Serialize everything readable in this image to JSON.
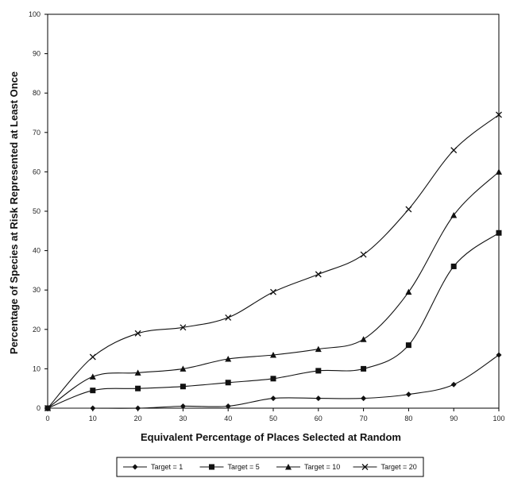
{
  "chart_data": {
    "type": "line",
    "xlabel": "Equivalent Percentage of Places Selected at Random",
    "ylabel": "Percentage of Species at Risk Represented at Least Once",
    "x": [
      0,
      10,
      20,
      30,
      40,
      50,
      60,
      70,
      80,
      90,
      100
    ],
    "xlim": [
      0,
      100
    ],
    "ylim": [
      0,
      100
    ],
    "x_ticks": [
      0,
      10,
      20,
      30,
      40,
      50,
      60,
      70,
      80,
      90,
      100
    ],
    "y_ticks": [
      0,
      10,
      20,
      30,
      40,
      50,
      60,
      70,
      80,
      90,
      100
    ],
    "grid": false,
    "legend_position": "bottom",
    "series": [
      {
        "name": "Target = 1",
        "marker": "diamond",
        "values": [
          0,
          0,
          0,
          0.5,
          0.5,
          2.5,
          2.5,
          2.5,
          3.5,
          6,
          13.5
        ]
      },
      {
        "name": "Target = 5",
        "marker": "square",
        "values": [
          0,
          4.5,
          5,
          5.5,
          6.5,
          7.5,
          9.5,
          10,
          16,
          36,
          44.5
        ]
      },
      {
        "name": "Target = 10",
        "marker": "triangle",
        "values": [
          0,
          8,
          9,
          10,
          12.5,
          13.5,
          15,
          17.5,
          29.5,
          49,
          60
        ]
      },
      {
        "name": "Target = 20",
        "marker": "x",
        "values": [
          0,
          13,
          19,
          20.5,
          23,
          29.5,
          34,
          39,
          50.5,
          65.5,
          74.5
        ]
      }
    ],
    "colors": {
      "line": "#111111",
      "axis": "#000000",
      "background": "#ffffff"
    }
  }
}
